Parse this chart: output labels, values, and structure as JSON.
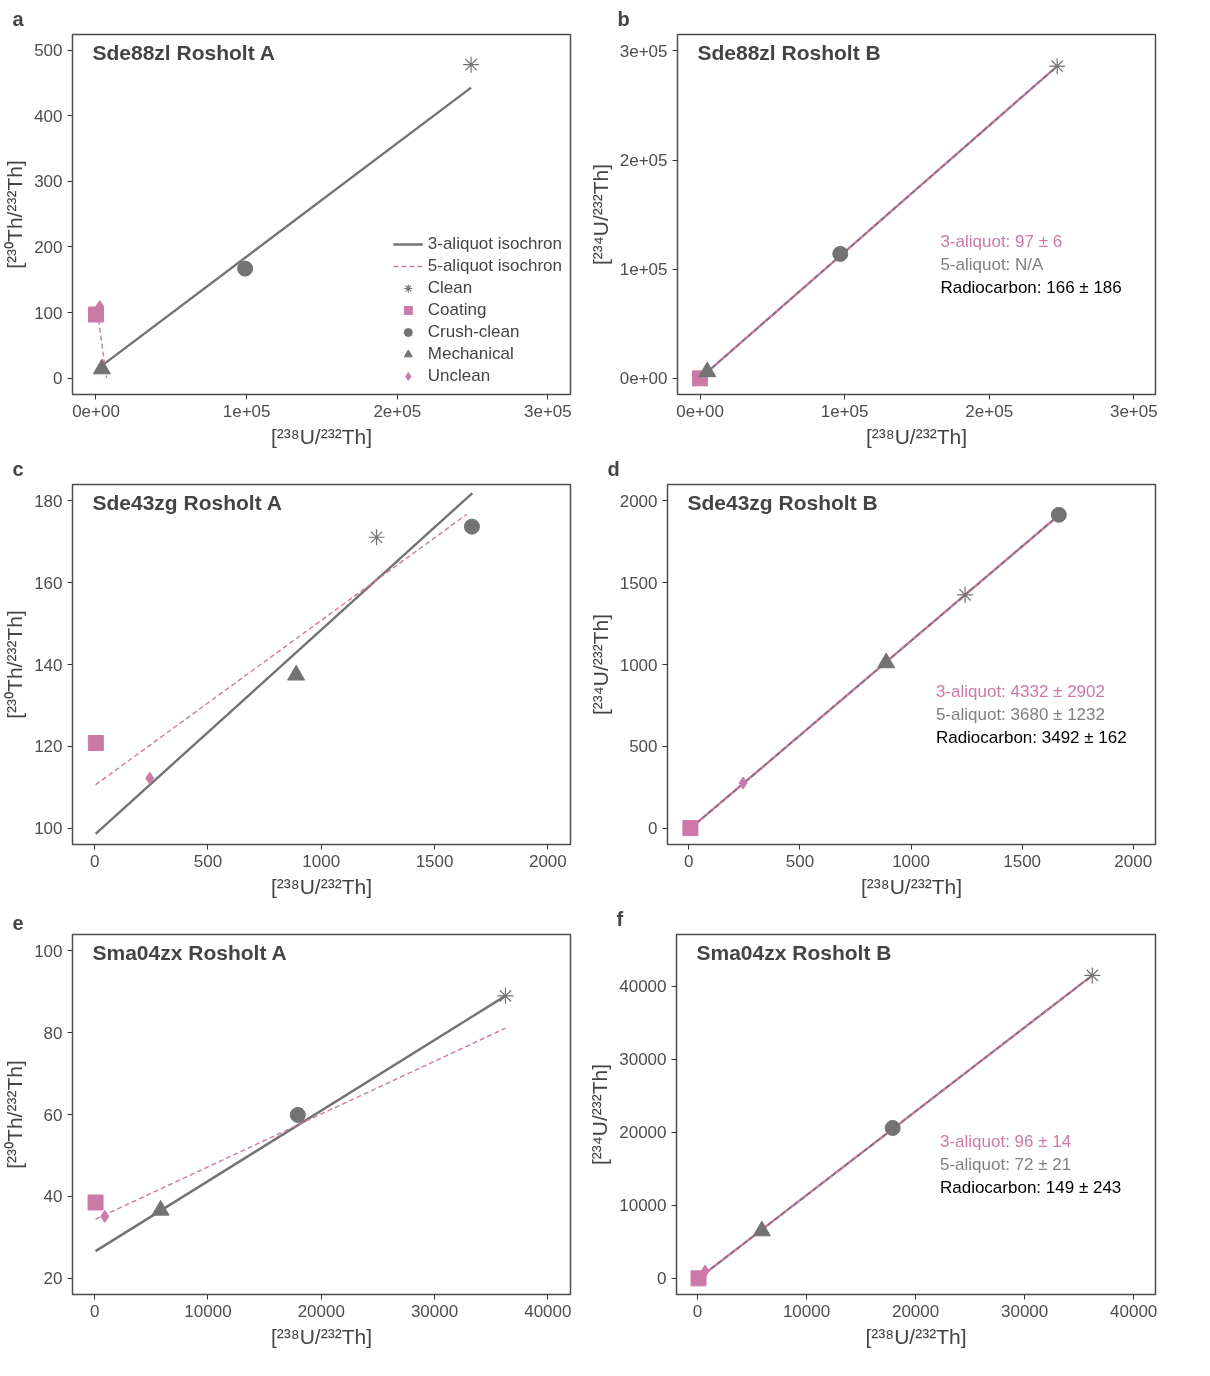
{
  "chart_data": [
    {
      "type": "scatter",
      "title": "Sde88zl Rosholt A",
      "xlabel": "[²³⁸U/²³²Th]",
      "ylabel": "[²³⁰Th/²³²Th]",
      "annotations": [
        "a"
      ],
      "legend": "bottom right",
      "grid": false,
      "xlim": [
        -15600,
        315000
      ],
      "ylim": [
        -25,
        524
      ],
      "xticks": [
        {
          "value": 0,
          "label": "0e+00"
        },
        {
          "value": 100000,
          "label": "1e+05"
        },
        {
          "value": 200000,
          "label": "2e+05"
        },
        {
          "value": 300000,
          "label": "3e+05"
        }
      ],
      "yticks": [
        0,
        100,
        200,
        300,
        400,
        500
      ],
      "series": [
        {
          "name": "3-aliquot isochron",
          "type": "line",
          "color": "#737373",
          "line_style": "solid",
          "x": [
            3900,
            249000
          ],
          "values": [
            19,
            443
          ]
        },
        {
          "name": "5-aliquot isochron",
          "type": "line",
          "color": "#cc79a7",
          "line_style": "dashed",
          "x": [
            1000,
            7000
          ],
          "values": [
            101,
            0
          ]
        },
        {
          "name": "Clean",
          "color": "#737373",
          "marker": "cross",
          "x": [
            249000
          ],
          "values": [
            478
          ]
        },
        {
          "name": "Coating",
          "color": "#cc79a7",
          "marker": "square",
          "x": [
            0
          ],
          "values": [
            97
          ]
        },
        {
          "name": "Crush-clean",
          "color": "#737373",
          "marker": "circle",
          "x": [
            99000
          ],
          "values": [
            167
          ]
        },
        {
          "name": "Mechanical",
          "color": "#737373",
          "marker": "triangle",
          "x": [
            3900
          ],
          "values": [
            14
          ]
        },
        {
          "name": "Unclean",
          "color": "#cc79a7",
          "marker": "diamond",
          "x": [
            2500
          ],
          "values": [
            109
          ]
        }
      ]
    },
    {
      "type": "scatter",
      "title": "Sde88zl Rosholt B",
      "xlabel": "[²³⁸U/²³²Th]",
      "ylabel": "[²³⁴U/²³²Th]",
      "annotations": [
        "b",
        "3-aliquot: 97 ± 6",
        "5-aliquot: N/A",
        "Radiocarbon: 166 ± 186"
      ],
      "grid": false,
      "xlim": [
        -15600,
        315000
      ],
      "ylim": [
        -14800,
        315000
      ],
      "xticks": [
        {
          "value": 0,
          "label": "0e+00"
        },
        {
          "value": 100000,
          "label": "1e+05"
        },
        {
          "value": 200000,
          "label": "2e+05"
        },
        {
          "value": 300000,
          "label": "3e+05"
        }
      ],
      "yticks": [
        {
          "value": 0,
          "label": "0e+00"
        },
        {
          "value": 100000,
          "label": "1e+05"
        },
        {
          "value": 200000,
          "label": "2e+05"
        },
        {
          "value": 300000,
          "label": "3e+05"
        }
      ],
      "series": [
        {
          "type": "line",
          "color": "#cc79a7",
          "line_style": "solid",
          "x": [
            0,
            247000
          ],
          "values": [
            0,
            286000
          ]
        },
        {
          "type": "line",
          "color": "#737373",
          "line_style": "dashed",
          "x": [
            0,
            247000
          ],
          "values": [
            0,
            286000
          ]
        },
        {
          "color": "#737373",
          "marker": "cross",
          "x": [
            247000
          ],
          "values": [
            286000
          ]
        },
        {
          "color": "#cc79a7",
          "marker": "square",
          "x": [
            0
          ],
          "values": [
            0
          ]
        },
        {
          "color": "#737373",
          "marker": "circle",
          "x": [
            97000
          ],
          "values": [
            114000
          ]
        },
        {
          "color": "#737373",
          "marker": "triangle",
          "x": [
            5000
          ],
          "values": [
            6000
          ]
        }
      ]
    },
    {
      "type": "scatter",
      "title": "Sde43zg Rosholt A",
      "xlabel": "[²³⁸U/²³²Th]",
      "ylabel": "[²³⁰Th/²³²Th]",
      "annotations": [
        "c"
      ],
      "grid": false,
      "xlim": [
        -98,
        2100
      ],
      "ylim": [
        96,
        184
      ],
      "xticks": [
        0,
        500,
        1000,
        1500,
        2000
      ],
      "yticks": [
        100,
        120,
        140,
        160,
        180
      ],
      "series": [
        {
          "type": "line",
          "color": "#737373",
          "line_style": "solid",
          "x": [
            4,
            1667
          ],
          "values": [
            98.6,
            181.9
          ]
        },
        {
          "type": "line",
          "color": "#cc79a7",
          "line_style": "dashed",
          "x": [
            4,
            1642
          ],
          "values": [
            110.6,
            176.7
          ]
        },
        {
          "color": "#737373",
          "marker": "cross",
          "x": [
            1244
          ],
          "values": [
            171.1
          ]
        },
        {
          "color": "#cc79a7",
          "marker": "square",
          "x": [
            5
          ],
          "values": [
            120.8
          ]
        },
        {
          "color": "#737373",
          "marker": "circle",
          "x": [
            1665
          ],
          "values": [
            173.7
          ]
        },
        {
          "color": "#737373",
          "marker": "triangle",
          "x": [
            889
          ],
          "values": [
            137.4
          ]
        },
        {
          "color": "#cc79a7",
          "marker": "diamond",
          "x": [
            243
          ],
          "values": [
            112.2
          ]
        }
      ]
    },
    {
      "type": "scatter",
      "title": "Sde43zg Rosholt B",
      "xlabel": "[²³⁸U/²³²Th]",
      "ylabel": "[²³⁴U/²³²Th]",
      "annotations": [
        "d",
        "3-aliquot: 4332 ± 2902",
        "5-aliquot: 3680 ± 1232",
        "Radiocarbon: 3492 ± 162"
      ],
      "grid": false,
      "xlim": [
        -96,
        2100
      ],
      "ylim": [
        -98,
        2098
      ],
      "xticks": [
        0,
        500,
        1000,
        1500,
        2000
      ],
      "yticks": [
        0,
        500,
        1000,
        1500,
        2000
      ],
      "series": [
        {
          "type": "line",
          "color": "#cc79a7",
          "line_style": "solid",
          "x": [
            7,
            1661
          ],
          "values": [
            0,
            1906
          ]
        },
        {
          "type": "line",
          "color": "#737373",
          "line_style": "dashed",
          "x": [
            7,
            1661
          ],
          "values": [
            0,
            1906
          ]
        },
        {
          "color": "#737373",
          "marker": "cross",
          "x": [
            1243
          ],
          "values": [
            1425
          ]
        },
        {
          "color": "#cc79a7",
          "marker": "square",
          "x": [
            7
          ],
          "values": [
            2
          ]
        },
        {
          "color": "#737373",
          "marker": "circle",
          "x": [
            1665
          ],
          "values": [
            1913
          ]
        },
        {
          "color": "#737373",
          "marker": "triangle",
          "x": [
            888
          ],
          "values": [
            1010
          ]
        },
        {
          "color": "#cc79a7",
          "marker": "diamond",
          "x": [
            244
          ],
          "values": [
            277
          ]
        }
      ]
    },
    {
      "type": "scatter",
      "title": "Sma04zx Rosholt A",
      "xlabel": "[²³⁸U/²³²Th]",
      "ylabel": "[²³⁰Th/²³²Th]",
      "annotations": [
        "e"
      ],
      "grid": false,
      "xlim": [
        -1960,
        42000
      ],
      "ylim": [
        16,
        104
      ],
      "xticks": [
        0,
        10000,
        20000,
        30000,
        40000
      ],
      "yticks": [
        20,
        40,
        60,
        80,
        100
      ],
      "series": [
        {
          "type": "line",
          "color": "#737373",
          "line_style": "solid",
          "x": [
            74,
            36260
          ],
          "values": [
            26.6,
            89.0
          ]
        },
        {
          "type": "line",
          "color": "#cc79a7",
          "line_style": "dashed",
          "x": [
            74,
            36260
          ],
          "values": [
            34.4,
            81.1
          ]
        },
        {
          "color": "#737373",
          "marker": "cross",
          "x": [
            36260
          ],
          "values": [
            89.0
          ]
        },
        {
          "color": "#cc79a7",
          "marker": "square",
          "x": [
            74
          ],
          "values": [
            38.5
          ]
        },
        {
          "color": "#737373",
          "marker": "circle",
          "x": [
            17930
          ],
          "values": [
            59.9
          ]
        },
        {
          "color": "#737373",
          "marker": "triangle",
          "x": [
            5815
          ],
          "values": [
            36.6
          ]
        },
        {
          "color": "#cc79a7",
          "marker": "diamond",
          "x": [
            890
          ],
          "values": [
            35.1
          ]
        }
      ]
    },
    {
      "type": "scatter",
      "title": "Sma04zx Rosholt B",
      "xlabel": "[²³⁸U/²³²Th]",
      "ylabel": "[²³⁴U/²³²Th]",
      "annotations": [
        "f",
        "3-aliquot: 96 ± 14",
        "5-aliquot: 72 ± 21",
        "Radiocarbon: 149 ± 243"
      ],
      "grid": false,
      "xlim": [
        -1924,
        42000
      ],
      "ylim": [
        -2210,
        47100
      ],
      "xticks": [
        0,
        10000,
        20000,
        30000,
        40000
      ],
      "yticks": [
        0,
        10000,
        20000,
        30000,
        40000
      ],
      "series": [
        {
          "type": "line",
          "color": "#cc79a7",
          "line_style": "solid",
          "x": [
            100,
            36200
          ],
          "values": [
            0,
            41500
          ]
        },
        {
          "type": "line",
          "color": "#737373",
          "line_style": "dashed",
          "x": [
            100,
            36200
          ],
          "values": [
            0,
            41500
          ]
        },
        {
          "color": "#737373",
          "marker": "cross",
          "x": [
            36200
          ],
          "values": [
            41500
          ]
        },
        {
          "color": "#cc79a7",
          "marker": "square",
          "x": [
            100
          ],
          "values": [
            0
          ]
        },
        {
          "color": "#737373",
          "marker": "circle",
          "x": [
            17900
          ],
          "values": [
            20600
          ]
        },
        {
          "color": "#737373",
          "marker": "triangle",
          "x": [
            5900
          ],
          "values": [
            6500
          ]
        },
        {
          "color": "#cc79a7",
          "marker": "diamond",
          "x": [
            700
          ],
          "values": [
            1000
          ]
        }
      ]
    }
  ]
}
